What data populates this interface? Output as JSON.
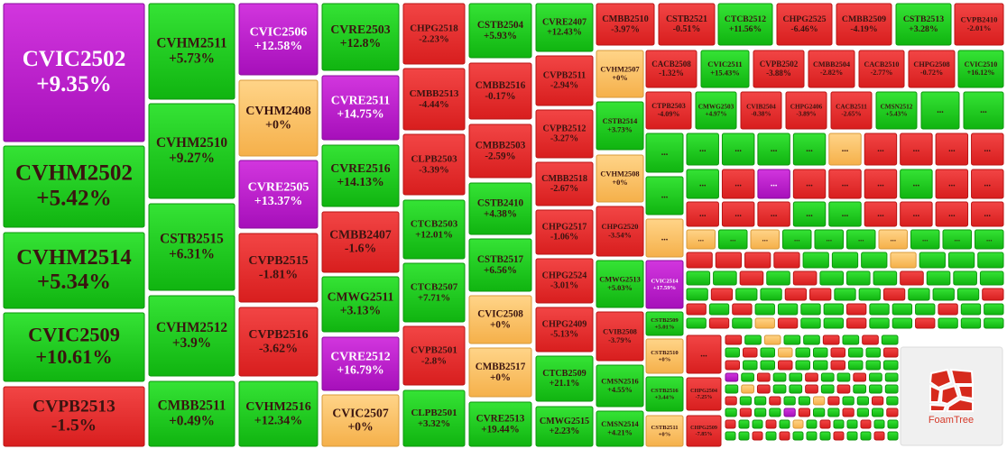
{
  "tiles": [
    {
      "name": "CVIC2502",
      "change": "+9.35%",
      "status": "ceiling"
    },
    {
      "name": "CVHM2502",
      "change": "+5.42%",
      "status": "up"
    },
    {
      "name": "CVHM2514",
      "change": "+5.34%",
      "status": "up"
    },
    {
      "name": "CVIC2509",
      "change": "+10.61%",
      "status": "up"
    },
    {
      "name": "CVPB2513",
      "change": "-1.5%",
      "status": "down"
    },
    {
      "name": "CVHM2511",
      "change": "+5.73%",
      "status": "up"
    },
    {
      "name": "CVHM2510",
      "change": "+9.27%",
      "status": "up"
    },
    {
      "name": "CSTB2515",
      "change": "+6.31%",
      "status": "up"
    },
    {
      "name": "CVHM2512",
      "change": "+3.9%",
      "status": "up"
    },
    {
      "name": "CMBB2511",
      "change": "+0.49%",
      "status": "up"
    },
    {
      "name": "CVIC2506",
      "change": "+12.58%",
      "status": "ceiling"
    },
    {
      "name": "CVHM2408",
      "change": "+0%",
      "status": "ref"
    },
    {
      "name": "CVRE2505",
      "change": "+13.37%",
      "status": "ceiling"
    },
    {
      "name": "CVPB2515",
      "change": "-1.81%",
      "status": "down"
    },
    {
      "name": "CVPB2516",
      "change": "-3.62%",
      "status": "down"
    },
    {
      "name": "CVHM2516",
      "change": "+12.34%",
      "status": "up"
    },
    {
      "name": "CVRE2503",
      "change": "+12.8%",
      "status": "up"
    },
    {
      "name": "CVRE2511",
      "change": "+14.75%",
      "status": "ceiling"
    },
    {
      "name": "CVRE2516",
      "change": "+14.13%",
      "status": "up"
    },
    {
      "name": "CMBB2407",
      "change": "-1.6%",
      "status": "down"
    },
    {
      "name": "CMWG2511",
      "change": "+3.13%",
      "status": "up"
    },
    {
      "name": "CVRE2512",
      "change": "+16.79%",
      "status": "ceiling"
    },
    {
      "name": "CVIC2507",
      "change": "+0%",
      "status": "ref"
    },
    {
      "name": "CHPG2518",
      "change": "-2.23%",
      "status": "down"
    },
    {
      "name": "CMBB2513",
      "change": "-4.44%",
      "status": "down"
    },
    {
      "name": "CLPB2503",
      "change": "-3.39%",
      "status": "down"
    },
    {
      "name": "CTCB2503",
      "change": "+12.01%",
      "status": "up"
    },
    {
      "name": "CTCB2507",
      "change": "+7.71%",
      "status": "up"
    },
    {
      "name": "CVPB2501",
      "change": "-2.8%",
      "status": "down"
    },
    {
      "name": "CLPB2501",
      "change": "+3.32%",
      "status": "up"
    },
    {
      "name": "CSTB2504",
      "change": "+5.93%",
      "status": "up"
    },
    {
      "name": "CMBB2516",
      "change": "-0.17%",
      "status": "down"
    },
    {
      "name": "CMBB2503",
      "change": "-2.59%",
      "status": "down"
    },
    {
      "name": "CSTB2410",
      "change": "+4.38%",
      "status": "up"
    },
    {
      "name": "CSTB2517",
      "change": "+6.56%",
      "status": "up"
    },
    {
      "name": "CVIC2508",
      "change": "+0%",
      "status": "ref"
    },
    {
      "name": "CMBB2517",
      "change": "+0%",
      "status": "ref"
    },
    {
      "name": "CVRE2513",
      "change": "+19.44%",
      "status": "up"
    },
    {
      "name": "CVRE2407",
      "change": "+12.43%",
      "status": "up"
    },
    {
      "name": "CVPB2511",
      "change": "-2.94%",
      "status": "down"
    },
    {
      "name": "CVPB2512",
      "change": "-3.27%",
      "status": "down"
    },
    {
      "name": "CMBB2518",
      "change": "-2.67%",
      "status": "down"
    },
    {
      "name": "CHPG2517",
      "change": "-1.06%",
      "status": "down"
    },
    {
      "name": "CHPG2524",
      "change": "-3.01%",
      "status": "down"
    },
    {
      "name": "CHPG2409",
      "change": "-5.13%",
      "status": "down"
    },
    {
      "name": "CTCB2509",
      "change": "+21.1%",
      "status": "up"
    },
    {
      "name": "CMWG2515",
      "change": "+2.23%",
      "status": "up"
    },
    {
      "name": "CMBB2510",
      "change": "-3.97%",
      "status": "down"
    },
    {
      "name": "CSTB2521",
      "change": "-0.51%",
      "status": "down"
    },
    {
      "name": "CTCB2512",
      "change": "+11.56%",
      "status": "up"
    },
    {
      "name": "CHPG2525",
      "change": "-6.46%",
      "status": "down"
    },
    {
      "name": "CMBB2509",
      "change": "-4.19%",
      "status": "down"
    },
    {
      "name": "CSTB2513",
      "change": "+3.28%",
      "status": "up"
    },
    {
      "name": "CVPB2410",
      "change": "-2.01%",
      "status": "down"
    },
    {
      "name": "CACB2508",
      "change": "-1.32%",
      "status": "down"
    },
    {
      "name": "CVIC2511",
      "change": "+15.43%",
      "status": "up"
    },
    {
      "name": "CVPB2502",
      "change": "-3.88%",
      "status": "down"
    },
    {
      "name": "CMBB2504",
      "change": "-2.82%",
      "status": "down"
    },
    {
      "name": "CACB2510",
      "change": "-2.77%",
      "status": "down"
    },
    {
      "name": "CHPG2508",
      "change": "-0.72%",
      "status": "down"
    },
    {
      "name": "CVIC2510",
      "change": "+16.12%",
      "status": "up"
    },
    {
      "name": "CTPB2503",
      "change": "-4.09%",
      "status": "down"
    },
    {
      "name": "CMWG2503",
      "change": "+4.97%",
      "status": "up"
    },
    {
      "name": "CVIB2504",
      "change": "-0.38%",
      "status": "down"
    },
    {
      "name": "CHPG2406",
      "change": "-3.89%",
      "status": "down"
    },
    {
      "name": "CACB2511",
      "change": "-2.65%",
      "status": "down"
    },
    {
      "name": "CMSN2512",
      "change": "+5.43%",
      "status": "up"
    },
    {
      "name": "CVHM2507",
      "change": "+0%",
      "status": "ref"
    },
    {
      "name": "CSTB2514",
      "change": "+3.73%",
      "status": "up"
    },
    {
      "name": "CVHM2508",
      "change": "+0%",
      "status": "ref"
    },
    {
      "name": "CHPG2520",
      "change": "-3.54%",
      "status": "down"
    },
    {
      "name": "CMWG2513",
      "change": "+5.03%",
      "status": "up"
    },
    {
      "name": "CVIB2508",
      "change": "-3.79%",
      "status": "down"
    },
    {
      "name": "CMSN2516",
      "change": "+4.55%",
      "status": "up"
    },
    {
      "name": "CMSN2514",
      "change": "+4.21%",
      "status": "up"
    },
    {
      "name": "CVIC2514",
      "change": "+17.59%",
      "status": "ceiling"
    },
    {
      "name": "CSTB2509",
      "change": "+5.01%",
      "status": "up"
    },
    {
      "name": "CSTB2510",
      "change": "+0%",
      "status": "ref"
    },
    {
      "name": "CSTB2516",
      "change": "+3.44%",
      "status": "up"
    },
    {
      "name": "CSTB2511",
      "change": "+0%",
      "status": "ref"
    },
    {
      "name": "CHPG2504",
      "change": "-7.25%",
      "status": "down"
    },
    {
      "name": "CHPG2509",
      "change": "-7.85%",
      "status": "down"
    }
  ],
  "ellipsis_label": "...",
  "ellipsis_tiles": [
    "up",
    "up",
    "ref",
    "up",
    "up",
    "down",
    "up",
    "up",
    "up",
    "up",
    "ref",
    "down",
    "down",
    "down",
    "down",
    "up",
    "down",
    "ceiling",
    "down",
    "down",
    "down",
    "up",
    "down",
    "down",
    "down",
    "down",
    "down",
    "up",
    "up",
    "down",
    "down",
    "down",
    "down",
    "ref",
    "up",
    "ref",
    "up",
    "up",
    "up",
    "ref",
    "up",
    "up",
    "up"
  ],
  "minor_tiles": [
    "down",
    "down",
    "down",
    "down",
    "up",
    "up",
    "up",
    "ref",
    "up",
    "up",
    "up",
    "up",
    "up",
    "down",
    "up",
    "down",
    "up",
    "up",
    "up",
    "down",
    "up",
    "up",
    "up",
    "up",
    "down",
    "up",
    "up",
    "down",
    "down",
    "up",
    "up",
    "down",
    "up",
    "up",
    "up",
    "down",
    "down",
    "up",
    "down",
    "up",
    "up",
    "up",
    "up",
    "down",
    "up",
    "up",
    "up",
    "down",
    "up",
    "up",
    "up",
    "down",
    "up",
    "ref",
    "down",
    "up",
    "up",
    "down",
    "up",
    "up",
    "down",
    "up",
    "up",
    "up",
    "down",
    "up",
    "ref",
    "up",
    "up",
    "down",
    "up",
    "down",
    "up",
    "up",
    "down",
    "up",
    "ref",
    "up",
    "up",
    "down",
    "up",
    "up",
    "down",
    "down",
    "up",
    "up",
    "down",
    "up",
    "up",
    "down",
    "up",
    "up",
    "up",
    "ceiling",
    "up",
    "down",
    "up",
    "up",
    "down",
    "up",
    "up",
    "down",
    "up",
    "up",
    "up",
    "ref",
    "down",
    "up",
    "up",
    "down",
    "up",
    "down",
    "up",
    "up",
    "up",
    "down",
    "up",
    "up",
    "down",
    "up",
    "up",
    "ref",
    "down",
    "up",
    "up",
    "down",
    "up",
    "up",
    "down",
    "up",
    "up",
    "ceiling",
    "down",
    "up",
    "up",
    "down",
    "up",
    "up",
    "down",
    "down",
    "up",
    "up",
    "down",
    "up",
    "ref",
    "up",
    "down",
    "up",
    "up",
    "down",
    "up",
    "up",
    "up",
    "up",
    "down",
    "up",
    "down",
    "up",
    "up",
    "up",
    "down",
    "up",
    "up",
    "down",
    "up"
  ],
  "branding": "FoamTree"
}
